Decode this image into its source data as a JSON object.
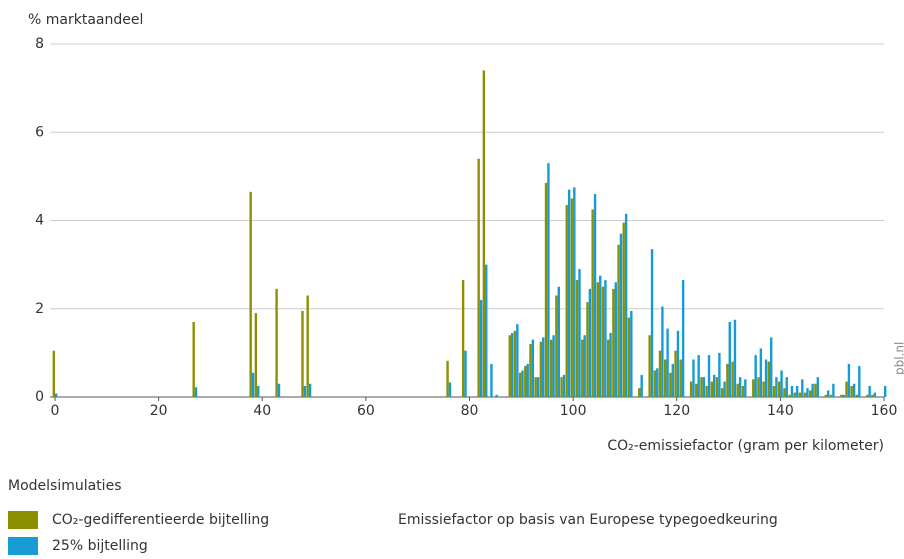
{
  "chart_data": {
    "type": "bar",
    "y_label": "% marktaandeel",
    "x_label": "CO₂-emissiefactor (gram per kilometer)",
    "legend_title": "Modelsimulaties",
    "note": "Emissiefactor op basis van Europese typegoedkeuring",
    "source": "pbl.nl",
    "x": [
      0,
      27,
      38,
      39,
      43,
      48,
      49,
      76,
      79,
      82,
      83,
      84,
      85,
      88,
      89,
      90,
      91,
      92,
      93,
      94,
      95,
      96,
      97,
      98,
      99,
      100,
      101,
      102,
      103,
      104,
      105,
      106,
      107,
      108,
      109,
      110,
      111,
      113,
      115,
      116,
      117,
      118,
      119,
      120,
      121,
      123,
      124,
      125,
      126,
      127,
      128,
      129,
      130,
      131,
      132,
      133,
      135,
      136,
      137,
      138,
      139,
      140,
      141,
      142,
      143,
      144,
      145,
      146,
      147,
      149,
      150,
      152,
      153,
      154,
      155,
      157,
      158,
      160
    ],
    "series": [
      {
        "name": "CO₂-gedifferentieerde bijtelling",
        "color": "#8c9000",
        "values": [
          1.05,
          1.7,
          4.65,
          1.9,
          2.45,
          1.95,
          2.3,
          0.82,
          2.65,
          5.4,
          7.4,
          0,
          0,
          1.4,
          1.5,
          0.55,
          0.7,
          1.2,
          0.45,
          1.25,
          4.85,
          1.3,
          2.3,
          0.45,
          4.35,
          4.5,
          2.65,
          1.3,
          2.15,
          4.25,
          2.6,
          2.5,
          1.3,
          2.45,
          3.45,
          3.95,
          1.8,
          0.2,
          1.4,
          0.6,
          1.05,
          0.85,
          0.55,
          1.05,
          0.85,
          0.35,
          0.3,
          0.45,
          0.25,
          0.35,
          0.45,
          0.2,
          0.75,
          0.8,
          0.3,
          0.25,
          0.4,
          0.45,
          0.35,
          0.8,
          0.25,
          0.35,
          0.2,
          0.05,
          0.1,
          0.1,
          0.1,
          0.15,
          0.3,
          0.05,
          0.05,
          0.05,
          0.35,
          0.25,
          0.05,
          0.05,
          0.05,
          0
        ]
      },
      {
        "name": "25% bijtelling",
        "color": "#169bd5",
        "values": [
          0.08,
          0.22,
          0.55,
          0.25,
          0.3,
          0.25,
          0.3,
          0.33,
          1.05,
          2.2,
          3.0,
          0.75,
          0.05,
          1.45,
          1.65,
          0.6,
          0.75,
          1.3,
          0.45,
          1.35,
          5.3,
          1.4,
          2.5,
          0.5,
          4.7,
          4.75,
          2.9,
          1.4,
          2.45,
          4.6,
          2.75,
          2.65,
          1.45,
          2.6,
          3.7,
          4.15,
          1.95,
          0.5,
          3.35,
          0.65,
          2.05,
          1.55,
          0.75,
          1.5,
          2.65,
          0.85,
          0.95,
          0.45,
          0.95,
          0.5,
          1.0,
          0.35,
          1.7,
          1.75,
          0.45,
          0.4,
          0.95,
          1.1,
          0.85,
          1.35,
          0.45,
          0.6,
          0.45,
          0.25,
          0.25,
          0.4,
          0.2,
          0.3,
          0.45,
          0.15,
          0.3,
          0.05,
          0.75,
          0.3,
          0.7,
          0.25,
          0.1,
          0.25
        ]
      }
    ],
    "xlim": [
      0,
      160
    ],
    "xticks": [
      0,
      20,
      40,
      60,
      80,
      100,
      120,
      140,
      160
    ],
    "ylim": [
      0,
      8
    ],
    "yticks": [
      0,
      2,
      4,
      6,
      8
    ],
    "grid": true
  }
}
